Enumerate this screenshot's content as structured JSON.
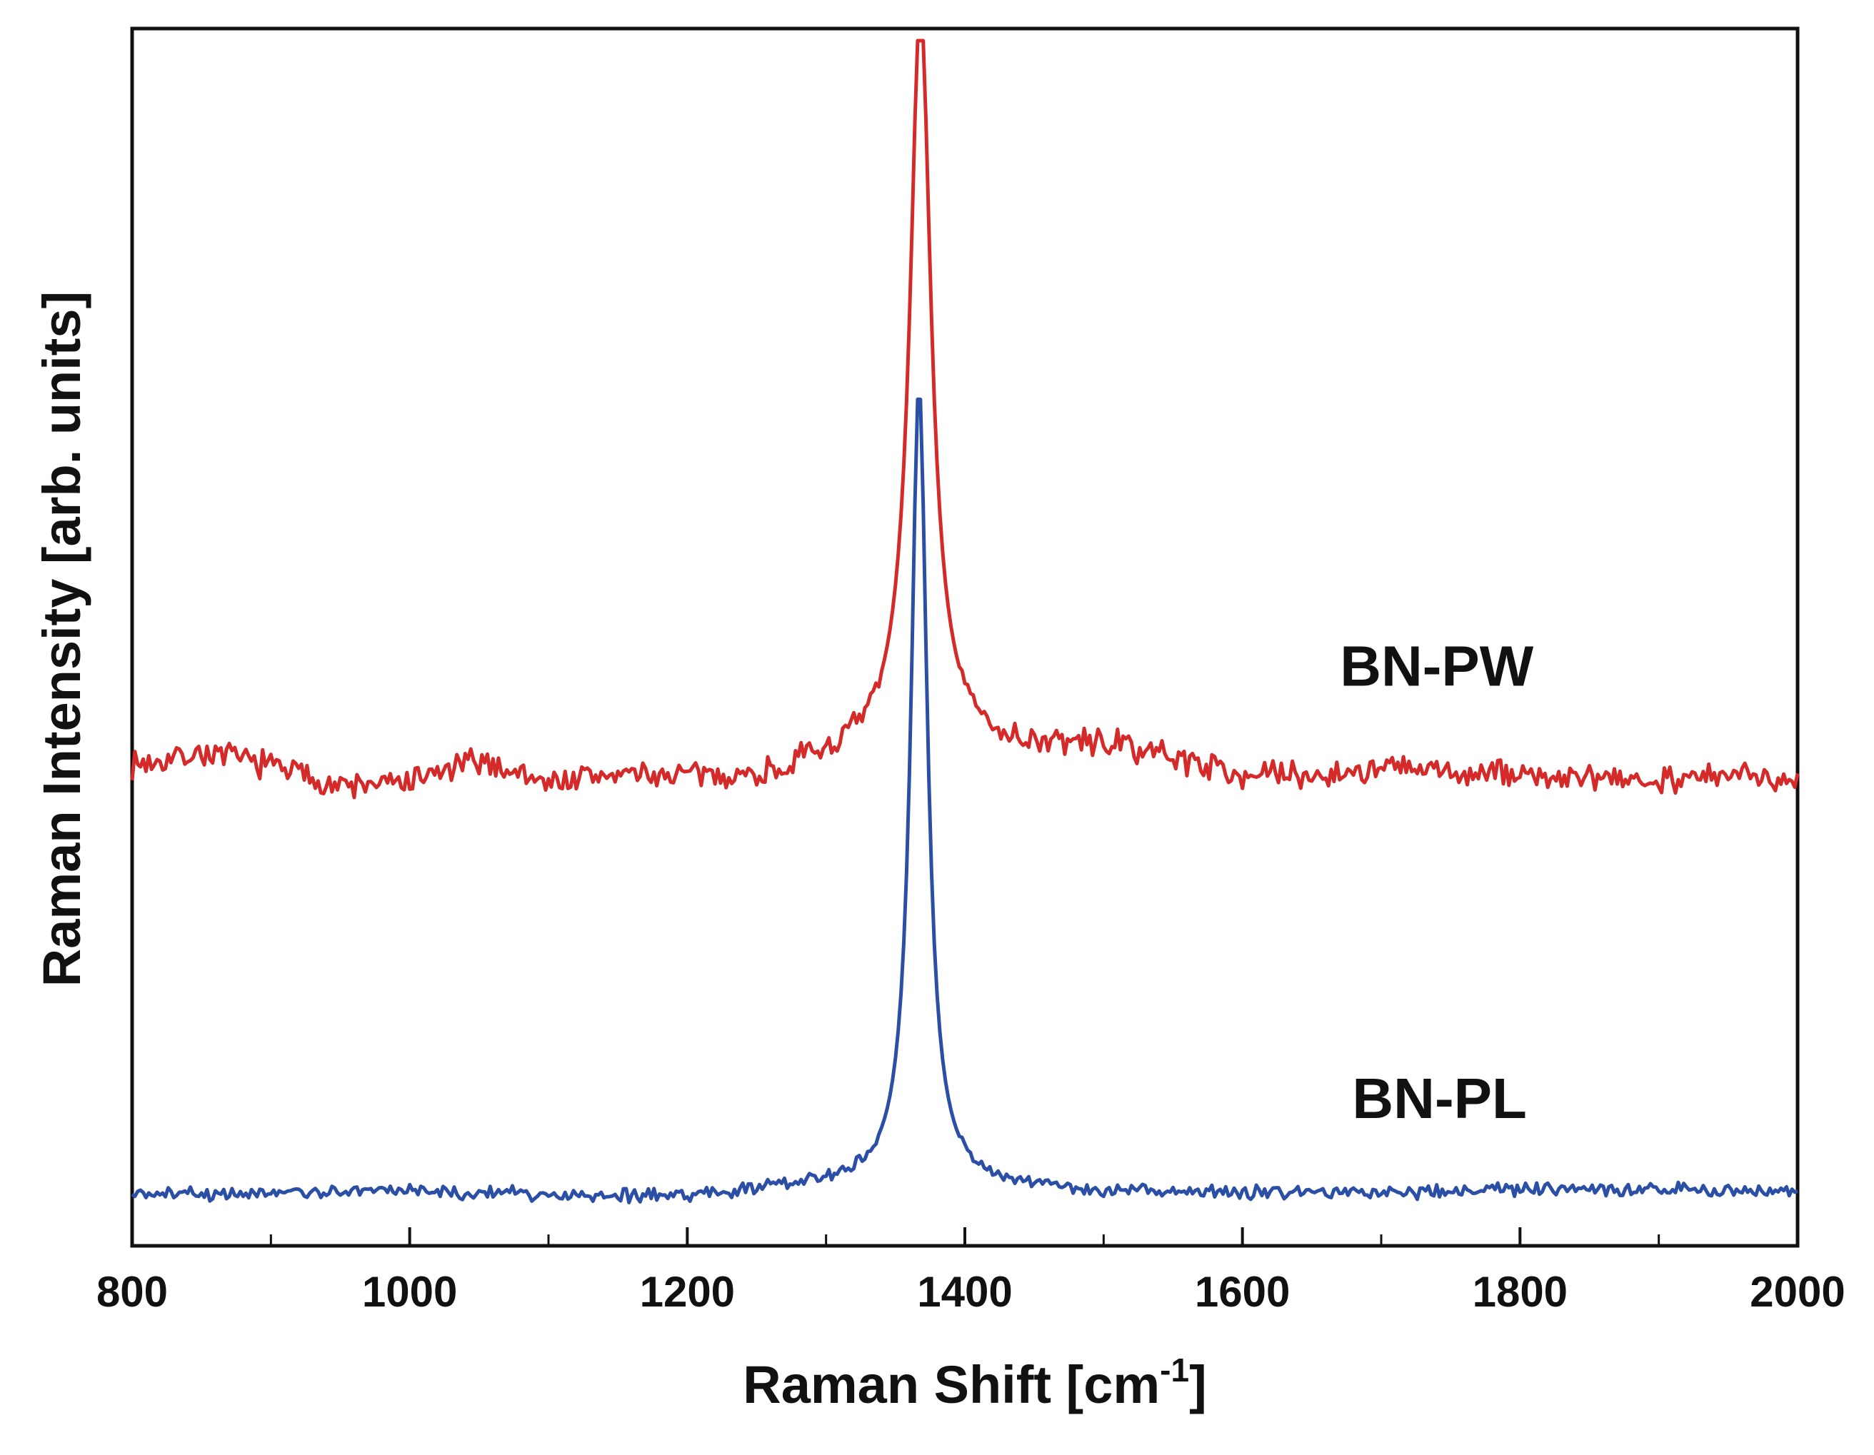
{
  "chart_data": {
    "type": "line",
    "title": "",
    "xlabel": "Raman Shift  [cm",
    "xlabel_sup": "-1",
    "xlabel_suffix": "]",
    "ylabel": "Raman Intensity  [arb. units]",
    "xlim": [
      800,
      2000
    ],
    "ylim": [
      0,
      100
    ],
    "x_ticks": [
      800,
      1000,
      1200,
      1400,
      1600,
      1800,
      2000
    ],
    "x_minor_step": 100,
    "y_ticks_shown": false,
    "grid": false,
    "series": [
      {
        "name": "BN-PW",
        "color": "#d42a2a",
        "baseline": 38.5,
        "peak_center": 1368,
        "peak_height": 58,
        "peak_width": 9,
        "shoulder_width": 28,
        "shoulder_height": 4,
        "noise": 0.9,
        "seed": 7,
        "points": [
          [
            800,
            39.5
          ],
          [
            850,
            40.5
          ],
          [
            900,
            39.5
          ],
          [
            950,
            37.7
          ],
          [
            1000,
            38.0
          ],
          [
            1050,
            39.8
          ],
          [
            1100,
            38.0
          ],
          [
            1150,
            38.6
          ],
          [
            1200,
            38.4
          ],
          [
            1250,
            38.2
          ],
          [
            1300,
            39.5
          ],
          [
            1330,
            42.5
          ],
          [
            1350,
            48.0
          ],
          [
            1360,
            70.0
          ],
          [
            1368,
            97.0
          ],
          [
            1376,
            70.0
          ],
          [
            1386,
            46.5
          ],
          [
            1400,
            42.0
          ],
          [
            1450,
            40.5
          ],
          [
            1500,
            41.0
          ],
          [
            1550,
            40.0
          ],
          [
            1600,
            38.6
          ],
          [
            1650,
            38.5
          ],
          [
            1700,
            39.2
          ],
          [
            1750,
            38.8
          ],
          [
            1800,
            38.7
          ],
          [
            1850,
            38.2
          ],
          [
            1900,
            38.4
          ],
          [
            1950,
            38.5
          ],
          [
            2000,
            38.6
          ]
        ]
      },
      {
        "name": "BN-PL",
        "color": "#2c4fa6",
        "baseline": 4.3,
        "peak_center": 1367,
        "peak_height": 64,
        "peak_width": 7,
        "shoulder_width": 22,
        "shoulder_height": 2,
        "noise": 0.45,
        "seed": 21,
        "points": [
          [
            800,
            4.3
          ],
          [
            900,
            4.3
          ],
          [
            1000,
            4.5
          ],
          [
            1100,
            4.2
          ],
          [
            1200,
            4.0
          ],
          [
            1300,
            5.0
          ],
          [
            1340,
            6.5
          ],
          [
            1355,
            14.0
          ],
          [
            1362,
            45.0
          ],
          [
            1367,
            68.0
          ],
          [
            1372,
            45.0
          ],
          [
            1380,
            14.0
          ],
          [
            1395,
            6.0
          ],
          [
            1450,
            4.6
          ],
          [
            1500,
            4.4
          ],
          [
            1600,
            4.3
          ],
          [
            1700,
            4.3
          ],
          [
            1800,
            4.6
          ],
          [
            1900,
            4.6
          ],
          [
            2000,
            4.5
          ]
        ]
      }
    ],
    "annotations": [
      {
        "text": "BN-PW",
        "x": 1740,
        "y": 46
      },
      {
        "text": "BN-PL",
        "x": 1742,
        "y": 10.5
      }
    ]
  }
}
